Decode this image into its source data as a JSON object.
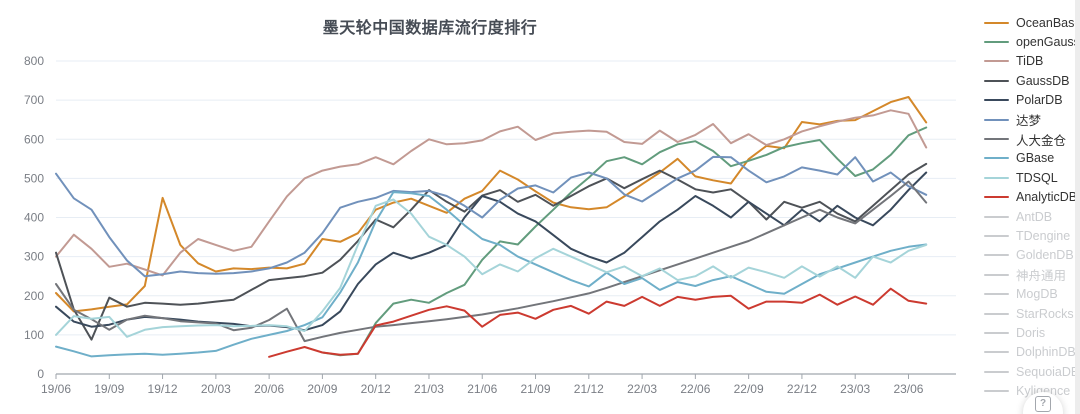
{
  "title": "墨天轮中国数据库流行度排行",
  "help_button": {
    "icon": "?"
  },
  "legend_colors": {
    "inactive": "#cacccf"
  },
  "chart_data": {
    "type": "line",
    "title": "墨天轮中国数据库流行度排行",
    "xlabel": "",
    "ylabel": "",
    "ylim": [
      0,
      800
    ],
    "y_ticks": [
      0,
      100,
      200,
      300,
      400,
      500,
      600,
      700,
      800
    ],
    "grid": true,
    "legend_position": "right",
    "x_tick_labels": [
      "19/06",
      "19/09",
      "19/12",
      "20/03",
      "20/06",
      "20/09",
      "20/12",
      "21/03",
      "21/06",
      "21/09",
      "21/12",
      "22/03",
      "22/06",
      "22/09",
      "22/12",
      "23/03",
      "23/06"
    ],
    "categories": [
      "19/06",
      "19/07",
      "19/08",
      "19/09",
      "19/10",
      "19/11",
      "19/12",
      "20/01",
      "20/02",
      "20/03",
      "20/04",
      "20/05",
      "20/06",
      "20/07",
      "20/08",
      "20/09",
      "20/10",
      "20/11",
      "20/12",
      "21/01",
      "21/02",
      "21/03",
      "21/04",
      "21/05",
      "21/06",
      "21/07",
      "21/08",
      "21/09",
      "21/10",
      "21/11",
      "21/12",
      "22/01",
      "22/02",
      "22/03",
      "22/04",
      "22/05",
      "22/06",
      "22/07",
      "22/08",
      "22/09",
      "22/10",
      "22/11",
      "22/12",
      "23/01",
      "23/02",
      "23/03",
      "23/04",
      "23/05",
      "23/06",
      "23/07"
    ],
    "series": [
      {
        "name": "OceanBase",
        "color": "#d4882a",
        "active": true,
        "values": [
          207,
          160,
          165,
          172,
          178,
          225,
          450,
          330,
          283,
          262,
          270,
          268,
          272,
          270,
          282,
          345,
          338,
          360,
          420,
          438,
          448,
          430,
          412,
          448,
          468,
          520,
          497,
          467,
          438,
          426,
          421,
          426,
          454,
          485,
          515,
          550,
          505,
          495,
          487,
          549,
          583,
          577,
          644,
          638,
          647,
          649,
          672,
          695,
          708,
          643
        ]
      },
      {
        "name": "openGauss",
        "color": "#629c7d",
        "active": true,
        "values": [
          null,
          null,
          null,
          null,
          null,
          null,
          null,
          null,
          null,
          null,
          null,
          null,
          null,
          null,
          null,
          55,
          48,
          52,
          130,
          180,
          190,
          182,
          207,
          228,
          292,
          339,
          331,
          377,
          420,
          464,
          502,
          544,
          554,
          536,
          567,
          587,
          595,
          570,
          531,
          545,
          560,
          580,
          590,
          598,
          550,
          506,
          523,
          560,
          610,
          630
        ]
      },
      {
        "name": "TiDB",
        "color": "#c29a93",
        "active": true,
        "values": [
          300,
          356,
          320,
          274,
          282,
          267,
          252,
          310,
          345,
          330,
          315,
          325,
          390,
          454,
          500,
          520,
          530,
          536,
          554,
          536,
          570,
          600,
          587,
          590,
          597,
          620,
          632,
          598,
          615,
          619,
          622,
          619,
          593,
          588,
          622,
          593,
          611,
          639,
          590,
          613,
          585,
          600,
          620,
          633,
          645,
          655,
          661,
          674,
          665,
          579
        ]
      },
      {
        "name": "GaussDB",
        "color": "#4e5257",
        "active": true,
        "values": [
          310,
          165,
          88,
          195,
          172,
          182,
          180,
          177,
          180,
          185,
          190,
          215,
          240,
          245,
          250,
          259,
          292,
          340,
          395,
          375,
          420,
          470,
          440,
          415,
          456,
          470,
          440,
          458,
          430,
          455,
          480,
          500,
          475,
          498,
          520,
          497,
          472,
          464,
          472,
          440,
          395,
          440,
          425,
          440,
          410,
          390,
          430,
          470,
          510,
          537
        ]
      },
      {
        "name": "PolarDB",
        "color": "#39495c",
        "active": true,
        "values": [
          172,
          134,
          121,
          126,
          139,
          146,
          143,
          139,
          134,
          131,
          128,
          122,
          124,
          120,
          112,
          125,
          160,
          230,
          280,
          310,
          295,
          310,
          330,
          400,
          455,
          440,
          410,
          390,
          355,
          320,
          300,
          285,
          310,
          350,
          390,
          420,
          455,
          430,
          400,
          440,
          410,
          380,
          420,
          390,
          430,
          400,
          380,
          420,
          470,
          515
        ]
      },
      {
        "name": "达梦",
        "color": "#7191bb",
        "active": true,
        "values": [
          512,
          449,
          420,
          350,
          290,
          250,
          255,
          262,
          258,
          256,
          258,
          262,
          270,
          285,
          310,
          360,
          425,
          440,
          450,
          468,
          465,
          468,
          455,
          430,
          400,
          445,
          474,
          482,
          464,
          502,
          515,
          500,
          459,
          441,
          470,
          500,
          520,
          555,
          554,
          520,
          490,
          505,
          528,
          520,
          510,
          554,
          492,
          515,
          480,
          458
        ]
      },
      {
        "name": "人大金仓",
        "color": "#73757a",
        "active": true,
        "values": [
          230,
          164,
          140,
          113,
          139,
          149,
          143,
          135,
          132,
          129,
          112,
          118,
          138,
          167,
          84,
          95,
          105,
          113,
          121,
          125,
          130,
          135,
          140,
          146,
          152,
          160,
          168,
          177,
          186,
          196,
          206,
          220,
          235,
          250,
          265,
          280,
          295,
          310,
          325,
          340,
          360,
          380,
          400,
          420,
          400,
          385,
          420,
          455,
          492,
          438
        ]
      },
      {
        "name": "GBase",
        "color": "#6fafc9",
        "active": true,
        "values": [
          70,
          58,
          45,
          48,
          50,
          52,
          49,
          52,
          55,
          59,
          75,
          90,
          100,
          110,
          125,
          145,
          208,
          285,
          390,
          465,
          462,
          455,
          420,
          380,
          345,
          330,
          300,
          280,
          260,
          240,
          224,
          259,
          230,
          245,
          215,
          235,
          225,
          240,
          250,
          230,
          210,
          205,
          230,
          255,
          270,
          285,
          300,
          315,
          325,
          331
        ]
      },
      {
        "name": "TDSQL",
        "color": "#a5d4d9",
        "active": true,
        "values": [
          100,
          148,
          141,
          146,
          95,
          113,
          120,
          122,
          124,
          125,
          122,
          123,
          125,
          122,
          110,
          160,
          220,
          330,
          430,
          446,
          410,
          351,
          330,
          300,
          255,
          280,
          262,
          296,
          320,
          300,
          280,
          260,
          275,
          250,
          270,
          240,
          250,
          275,
          246,
          272,
          260,
          246,
          275,
          249,
          275,
          246,
          300,
          285,
          315,
          330
        ]
      },
      {
        "name": "AnalyticDB",
        "color": "#cc3a30",
        "active": true,
        "values": [
          null,
          null,
          null,
          null,
          null,
          null,
          null,
          null,
          null,
          null,
          null,
          null,
          44,
          57,
          69,
          55,
          49,
          52,
          124,
          134,
          149,
          164,
          173,
          162,
          121,
          151,
          157,
          141,
          164,
          174,
          154,
          185,
          174,
          197,
          174,
          197,
          190,
          197,
          200,
          167,
          185,
          185,
          182,
          203,
          177,
          198,
          177,
          218,
          187,
          180
        ]
      },
      {
        "name": "AntDB",
        "color": "#cacccf",
        "active": false,
        "values": []
      },
      {
        "name": "TDengine",
        "color": "#cacccf",
        "active": false,
        "values": []
      },
      {
        "name": "GoldenDB",
        "color": "#cacccf",
        "active": false,
        "values": []
      },
      {
        "name": "神舟通用",
        "color": "#cacccf",
        "active": false,
        "values": []
      },
      {
        "name": "MogDB",
        "color": "#cacccf",
        "active": false,
        "values": []
      },
      {
        "name": "StarRocks",
        "color": "#cacccf",
        "active": false,
        "values": []
      },
      {
        "name": "Doris",
        "color": "#cacccf",
        "active": false,
        "values": []
      },
      {
        "name": "DolphinDB",
        "color": "#cacccf",
        "active": false,
        "values": []
      },
      {
        "name": "SequoiaDB",
        "color": "#cacccf",
        "active": false,
        "values": []
      },
      {
        "name": "Kyligence",
        "color": "#cacccf",
        "active": false,
        "values": []
      }
    ]
  }
}
